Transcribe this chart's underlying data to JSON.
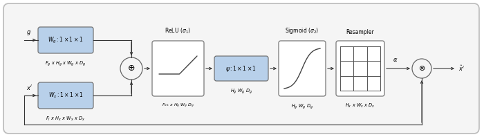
{
  "bg_outer": "#ffffff",
  "bg_inner": "#f8f8f8",
  "box_fill_blue": "#b8d0ea",
  "box_fill_white": "#ffffff",
  "box_edge": "#666666",
  "line_color": "#333333",
  "label_Wg": "$W_g: 1\\times1\\times1$",
  "label_Wx": "$W_x: 1\\times1\\times1$",
  "label_psi": "$\\psi: 1\\times1\\times1$",
  "label_relu_title": "ReLU ($\\sigma_1$)",
  "label_sigmoid_title": "Sigmoid ($\\sigma_2$)",
  "label_resampler_title": "Resampler",
  "label_Fg": "$F_g$ x $H_g$ x $W_g$ x $D_g$",
  "label_Fl": "$F_l$ x $H_x$ x $W_x$ x $D_x$",
  "label_Fint": "$F_{\\mathrm{int}}$ x $H_g$ $W_g$ $D_g$",
  "label_HgWgDg_sig": "$H_g$ $W_g$ $D_g$",
  "label_HxWxDx": "$H_x$ x $W_x$ x $D_x$",
  "label_g": "$g$",
  "label_xl": "$x^l$",
  "label_alpha": "$\\alpha$",
  "label_xhat": "$\\hat{x}^l$"
}
